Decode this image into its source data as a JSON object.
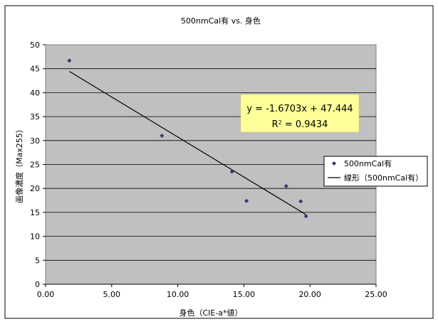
{
  "chart_data": {
    "type": "scatter",
    "title": "500nmCal有 vs. 身色",
    "xlabel": "身色（CIE-a*値）",
    "ylabel": "画像濃度（Max255）",
    "xlim": [
      0,
      25
    ],
    "ylim": [
      0,
      50
    ],
    "x_ticks": [
      "0.00",
      "5.00",
      "10.00",
      "15.00",
      "20.00",
      "25.00"
    ],
    "y_ticks": [
      "0",
      "5",
      "10",
      "15",
      "20",
      "25",
      "30",
      "35",
      "40",
      "45",
      "50"
    ],
    "grid": "horizontal",
    "series": [
      {
        "name": "500nmCal有",
        "marker": "diamond",
        "color": "#4b2a6b",
        "x": [
          1.8,
          8.8,
          14.1,
          15.2,
          18.2,
          19.3,
          19.7
        ],
        "y": [
          46.7,
          31.0,
          23.5,
          17.4,
          20.5,
          17.3,
          14.2
        ]
      }
    ],
    "trendline": {
      "name": "線形（500nmCal有）",
      "type": "linear",
      "slope": -1.6703,
      "intercept": 47.444,
      "x_range": [
        1.8,
        19.7
      ],
      "color": "#000000"
    },
    "equation_label": {
      "line1": "y = -1.6703x + 47.444",
      "r2_prefix": "R",
      "r2_sup": "2",
      "r2_suffix": " = 0.9434"
    },
    "legend": {
      "position": "right",
      "entries": [
        "500nmCal有",
        "線形（500nmCal有）"
      ]
    },
    "colors": {
      "plot_background": "#c0c0c0",
      "equation_box": "#ffff99",
      "gridline": "#000000"
    }
  }
}
